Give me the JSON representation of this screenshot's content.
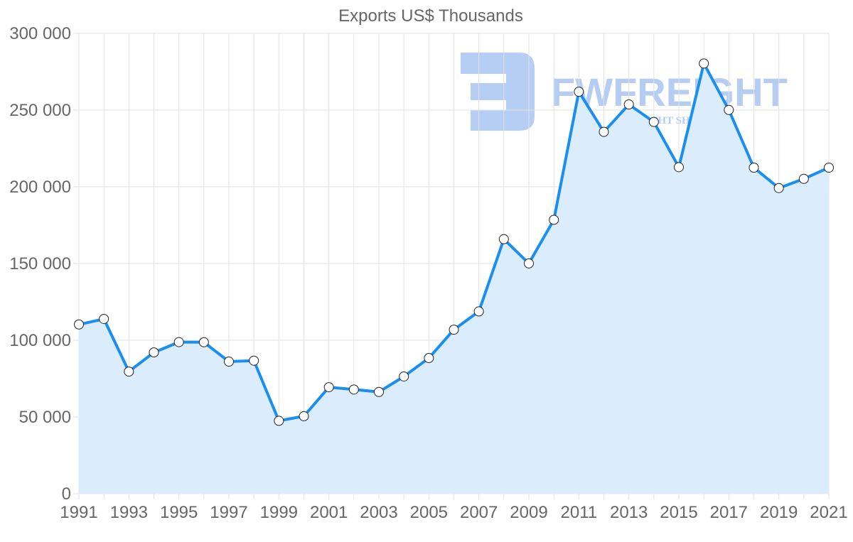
{
  "chart_data": {
    "type": "line",
    "title": "Exports US$ Thousands",
    "xlabel": "",
    "ylabel": "",
    "ylim": [
      0,
      300000
    ],
    "yticks": [
      0,
      50000,
      100000,
      150000,
      200000,
      250000,
      300000
    ],
    "ytick_labels": [
      "0",
      "50 000",
      "100 000",
      "150 000",
      "200 000",
      "250 000",
      "300 000"
    ],
    "xtick_labels": [
      "1991",
      "1993",
      "1995",
      "1997",
      "1999",
      "2001",
      "2003",
      "2005",
      "2007",
      "2009",
      "2011",
      "2013",
      "2015",
      "2017",
      "2019",
      "2021"
    ],
    "grid": true,
    "legend": null,
    "x": [
      1991,
      1992,
      1993,
      1994,
      1995,
      1996,
      1997,
      1998,
      1999,
      2000,
      2001,
      2002,
      2003,
      2004,
      2005,
      2006,
      2007,
      2008,
      2009,
      2010,
      2011,
      2012,
      2013,
      2014,
      2015,
      2016,
      2017,
      2018,
      2019,
      2020,
      2021
    ],
    "series": [
      {
        "name": "Exports",
        "values": [
          110300,
          113900,
          79600,
          92100,
          98800,
          98700,
          86100,
          86700,
          47500,
          50500,
          69400,
          67900,
          66300,
          76400,
          88400,
          106900,
          118800,
          165900,
          150100,
          178500,
          262000,
          235800,
          253700,
          242300,
          212800,
          280400,
          250100,
          212500,
          199200,
          205200,
          212500
        ]
      }
    ],
    "colors": {
      "line": "#1a8ff0",
      "fill": "#dbecfd",
      "grid": "#e2e2e2",
      "text": "#666666",
      "marker_fill": "#ffffff",
      "marker_stroke": "#222222"
    }
  },
  "watermark": {
    "brand": "FWFREIGHT",
    "tagline": "FREIGHT SHIPPING",
    "color": "#a9c4f2"
  }
}
